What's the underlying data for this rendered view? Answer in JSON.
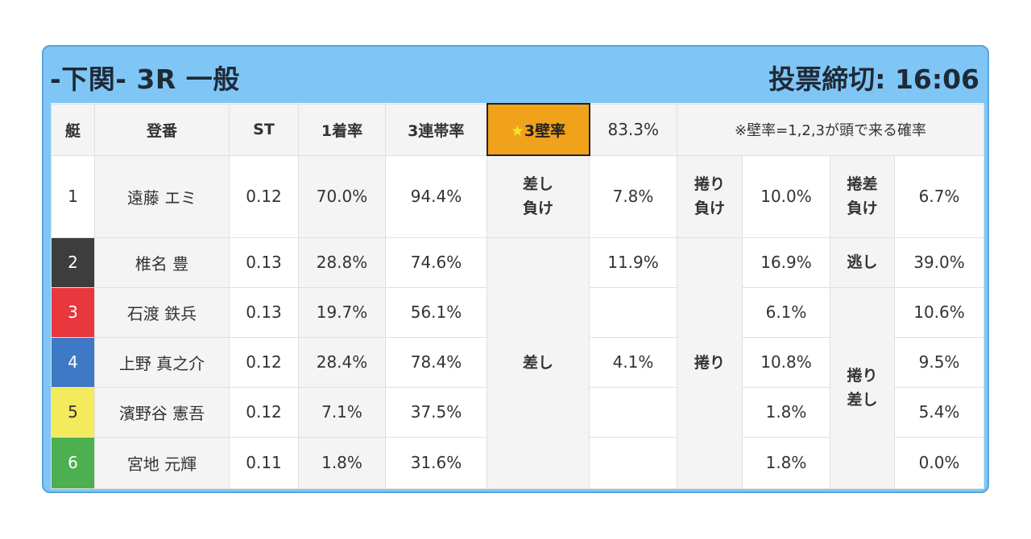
{
  "header": {
    "title": "-下関- 3R 一般",
    "deadline": "投票締切: 16:06"
  },
  "columns": {
    "lane": "艇",
    "name": "登番",
    "st": "ST",
    "first_rate": "1着率",
    "top3_rate": "3連帯率",
    "wall_label": "3壁率",
    "wall_star": "★",
    "wall_value": "83.3%",
    "note": "※壁率=1,2,3が頭で来る確率"
  },
  "rows": [
    {
      "lane": "1",
      "name": "遠藤 エミ",
      "st": "0.12",
      "first": "70.0%",
      "top3": "94.4%"
    },
    {
      "lane": "2",
      "name": "椎名 豊",
      "st": "0.13",
      "first": "28.8%",
      "top3": "74.6%"
    },
    {
      "lane": "3",
      "name": "石渡 鉄兵",
      "st": "0.13",
      "first": "19.7%",
      "top3": "56.1%"
    },
    {
      "lane": "4",
      "name": "上野 真之介",
      "st": "0.12",
      "first": "28.4%",
      "top3": "78.4%"
    },
    {
      "lane": "5",
      "name": "濱野谷 憲吾",
      "st": "0.12",
      "first": "7.1%",
      "top3": "37.5%"
    },
    {
      "lane": "6",
      "name": "宮地 元輝",
      "st": "0.11",
      "first": "1.8%",
      "top3": "31.6%"
    }
  ],
  "patterns": {
    "sashi_make": {
      "line1": "差し",
      "line2": "負け",
      "value": "7.8%"
    },
    "makuri_make": {
      "line1": "捲り",
      "line2": "負け",
      "value": "10.0%"
    },
    "makurisashi_make": {
      "line1": "捲差",
      "line2": "負け",
      "value": "6.7%"
    },
    "sashi": {
      "label": "差し",
      "values": [
        "11.9%",
        "",
        "4.1%",
        "",
        ""
      ]
    },
    "makuri": {
      "label": "捲り",
      "values": [
        "16.9%",
        "6.1%",
        "10.8%",
        "1.8%",
        "1.8%"
      ]
    },
    "nige": {
      "label": "逃し",
      "value": "39.0%"
    },
    "makurisashi": {
      "line1": "捲り",
      "line2": "差し",
      "values": [
        "10.6%",
        "9.5%",
        "5.4%",
        "0.0%"
      ]
    }
  },
  "colors": {
    "card_bg": "#7fc6f7",
    "wall_highlight": "#f1a21b",
    "lane1": "#ffffff",
    "lane2": "#3d3d3d",
    "lane3": "#e8383d",
    "lane4": "#3f78c5",
    "lane5": "#f3ea5d",
    "lane6": "#4caf50"
  }
}
